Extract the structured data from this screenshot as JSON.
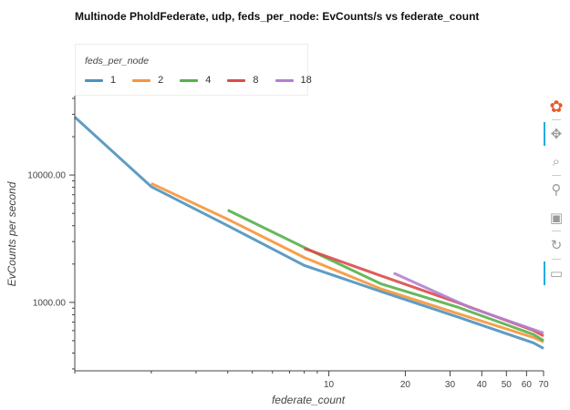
{
  "colors": {
    "series": [
      "#4c92be",
      "#f5963a",
      "#55b04b",
      "#dc4b48",
      "#b27fd0"
    ],
    "axis": "#444444",
    "toolbar_active": "#26aae1"
  },
  "toolbar": {
    "tools": [
      {
        "name": "bokeh-logo-icon",
        "glyph": "✿",
        "active": false
      },
      {
        "name": "pan-icon",
        "glyph": "✥",
        "active": true
      },
      {
        "name": "box-zoom-icon",
        "glyph": "⌕",
        "active": false
      },
      {
        "name": "wheel-zoom-icon",
        "glyph": "⚲",
        "active": false
      },
      {
        "name": "save-icon",
        "glyph": "▣",
        "active": false
      },
      {
        "name": "reset-icon",
        "glyph": "↻",
        "active": false
      },
      {
        "name": "hover-icon",
        "glyph": "▭",
        "active": true
      }
    ]
  },
  "chart_data": {
    "type": "line",
    "title": "Multinode PholdFederate, udp, feds_per_node: EvCounts/s vs federate_count",
    "xlabel": "federate_count",
    "ylabel": "EvCounts per second",
    "legend_title": "feds_per_node",
    "legend_position": "top-left, above plot",
    "x_scale": "log",
    "y_scale": "log",
    "xlim": [
      1,
      70
    ],
    "ylim": [
      290,
      42000
    ],
    "x_ticks": [
      10,
      20,
      30,
      40,
      50,
      60,
      70
    ],
    "y_ticks": [
      1000,
      10000
    ],
    "y_tick_labels": [
      "1000.00",
      "10000.00"
    ],
    "grid": false,
    "series": [
      {
        "name": "1",
        "x": [
          1,
          2,
          4,
          8,
          16,
          32,
          64,
          70
        ],
        "y": [
          28500,
          8100,
          4000,
          1950,
          1220,
          770,
          480,
          435
        ]
      },
      {
        "name": "2",
        "x": [
          2,
          4,
          8,
          16,
          32,
          64,
          70
        ],
        "y": [
          8600,
          4500,
          2250,
          1280,
          820,
          530,
          490
        ]
      },
      {
        "name": "4",
        "x": [
          4,
          8,
          16,
          32,
          64,
          70
        ],
        "y": [
          5300,
          2700,
          1400,
          920,
          560,
          500
        ]
      },
      {
        "name": "8",
        "x": [
          8,
          16,
          32,
          64,
          70
        ],
        "y": [
          2650,
          1620,
          1000,
          600,
          545
        ]
      },
      {
        "name": "18",
        "x": [
          18,
          36,
          70
        ],
        "y": [
          1700,
          910,
          575
        ]
      }
    ]
  }
}
